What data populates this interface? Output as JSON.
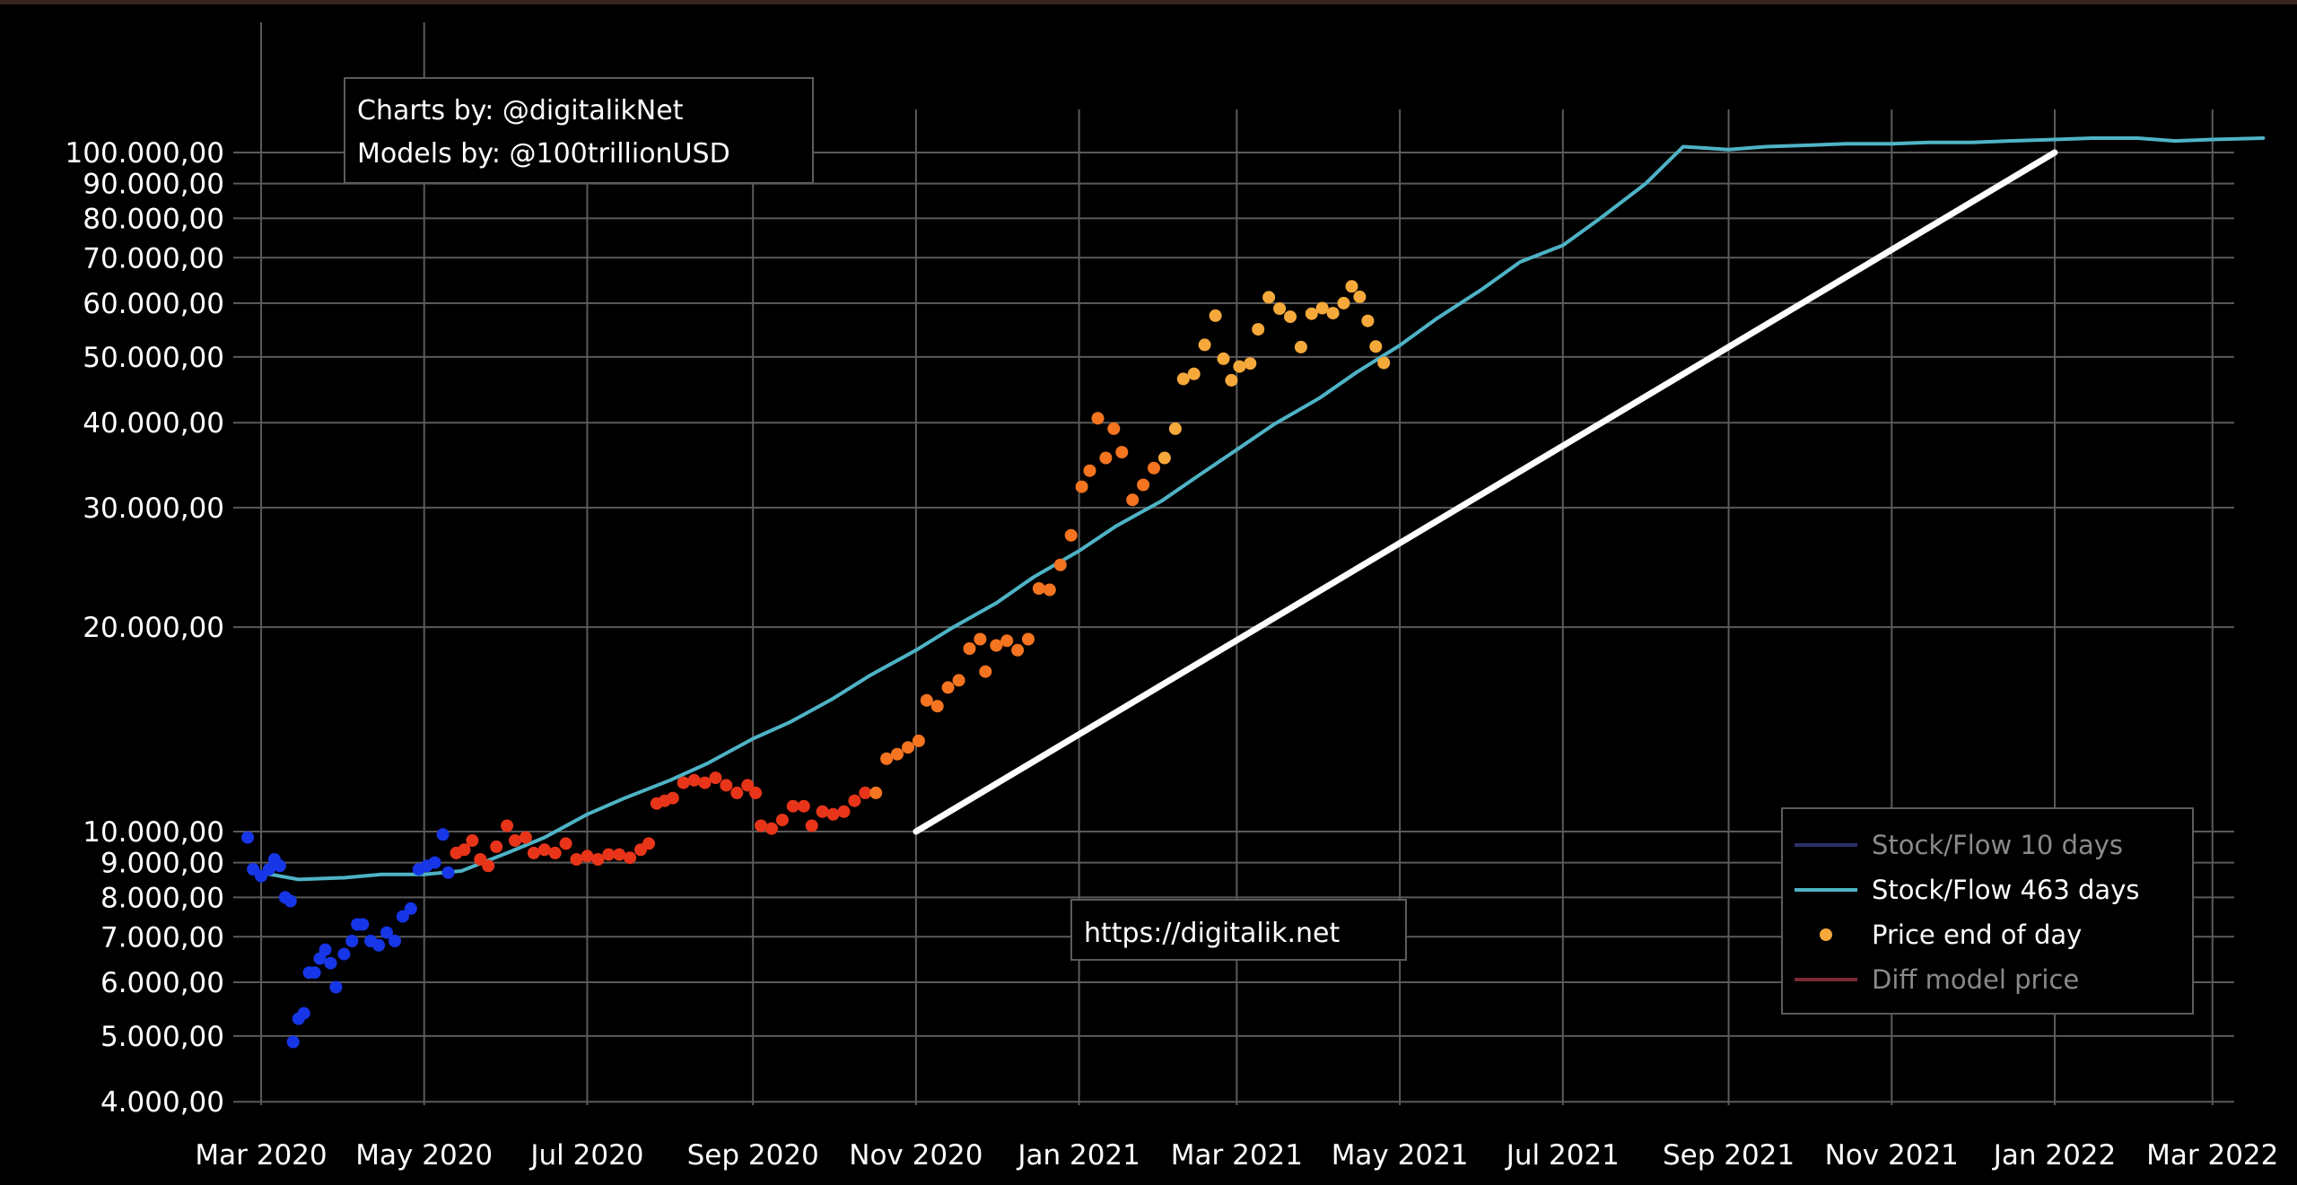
{
  "chart_data": {
    "type": "scatter",
    "x_axis": {
      "type": "date",
      "range": [
        "2020-02-24",
        "2022-03-20"
      ],
      "ticks": [
        {
          "date": "2020-03-01",
          "label": "Mar 2020"
        },
        {
          "date": "2020-05-01",
          "label": "May 2020"
        },
        {
          "date": "2020-07-01",
          "label": "Jul 2020"
        },
        {
          "date": "2020-09-01",
          "label": "Sep 2020"
        },
        {
          "date": "2020-11-01",
          "label": "Nov 2020"
        },
        {
          "date": "2021-01-01",
          "label": "Jan 2021"
        },
        {
          "date": "2021-03-01",
          "label": "Mar 2021"
        },
        {
          "date": "2021-05-01",
          "label": "May 2021"
        },
        {
          "date": "2021-07-01",
          "label": "Jul 2021"
        },
        {
          "date": "2021-09-01",
          "label": "Sep 2021"
        },
        {
          "date": "2021-11-01",
          "label": "Nov 2021"
        },
        {
          "date": "2022-01-01",
          "label": "Jan 2022"
        },
        {
          "date": "2022-03-01",
          "label": "Mar 2022"
        }
      ]
    },
    "y_axis": {
      "scale": "log",
      "range": [
        3700,
        128000
      ],
      "ticks": [
        {
          "value": 4000,
          "label": "4.000,00"
        },
        {
          "value": 5000,
          "label": "5.000,00"
        },
        {
          "value": 6000,
          "label": "6.000,00"
        },
        {
          "value": 7000,
          "label": "7.000,00"
        },
        {
          "value": 8000,
          "label": "8.000,00"
        },
        {
          "value": 9000,
          "label": "9.000,00"
        },
        {
          "value": 10000,
          "label": "10.000,00"
        },
        {
          "value": 20000,
          "label": "20.000,00"
        },
        {
          "value": 30000,
          "label": "30.000,00"
        },
        {
          "value": 40000,
          "label": "40.000,00"
        },
        {
          "value": 50000,
          "label": "50.000,00"
        },
        {
          "value": 60000,
          "label": "60.000,00"
        },
        {
          "value": 70000,
          "label": "70.000,00"
        },
        {
          "value": 80000,
          "label": "80.000,00"
        },
        {
          "value": 90000,
          "label": "90.000,00"
        },
        {
          "value": 100000,
          "label": "100.000,00"
        }
      ]
    },
    "grid": true,
    "legend_position": "bottom-right",
    "series": [
      {
        "name": "Stock/Flow 10 days",
        "kind": "line",
        "color": "#2b2f6b",
        "visible": false,
        "points": []
      },
      {
        "name": "Stock/Flow 463 days",
        "kind": "line",
        "color": "#4fb3c6",
        "points": [
          [
            "2020-03-01",
            8700
          ],
          [
            "2020-03-15",
            8500
          ],
          [
            "2020-04-01",
            8550
          ],
          [
            "2020-04-15",
            8650
          ],
          [
            "2020-05-01",
            8650
          ],
          [
            "2020-05-15",
            8750
          ],
          [
            "2020-06-01",
            9300
          ],
          [
            "2020-06-15",
            9800
          ],
          [
            "2020-07-01",
            10600
          ],
          [
            "2020-07-15",
            11200
          ],
          [
            "2020-08-01",
            11900
          ],
          [
            "2020-08-15",
            12600
          ],
          [
            "2020-09-01",
            13700
          ],
          [
            "2020-09-15",
            14500
          ],
          [
            "2020-10-01",
            15700
          ],
          [
            "2020-10-15",
            17000
          ],
          [
            "2020-11-01",
            18500
          ],
          [
            "2020-11-15",
            20000
          ],
          [
            "2020-12-01",
            21700
          ],
          [
            "2020-12-15",
            23700
          ],
          [
            "2021-01-01",
            25900
          ],
          [
            "2021-01-15",
            28200
          ],
          [
            "2021-02-01",
            30700
          ],
          [
            "2021-02-15",
            33500
          ],
          [
            "2021-03-01",
            36500
          ],
          [
            "2021-03-15",
            39800
          ],
          [
            "2021-04-01",
            43500
          ],
          [
            "2021-04-15",
            47500
          ],
          [
            "2021-05-01",
            52000
          ],
          [
            "2021-05-15",
            57000
          ],
          [
            "2021-06-01",
            63000
          ],
          [
            "2021-06-15",
            69000
          ],
          [
            "2021-07-01",
            73000
          ],
          [
            "2021-07-15",
            80000
          ],
          [
            "2021-08-01",
            90000
          ],
          [
            "2021-08-15",
            102000
          ],
          [
            "2021-09-01",
            101000
          ],
          [
            "2021-09-15",
            102000
          ],
          [
            "2021-10-01",
            102500
          ],
          [
            "2021-10-15",
            103000
          ],
          [
            "2021-11-01",
            103000
          ],
          [
            "2021-11-15",
            103500
          ],
          [
            "2021-12-01",
            103500
          ],
          [
            "2021-12-15",
            104000
          ],
          [
            "2022-01-01",
            104500
          ],
          [
            "2022-01-15",
            105000
          ],
          [
            "2022-02-01",
            105000
          ],
          [
            "2022-02-15",
            104000
          ],
          [
            "2022-03-01",
            104500
          ],
          [
            "2022-03-20",
            105000
          ]
        ]
      },
      {
        "name": "Price end of day",
        "kind": "scatter",
        "color": "#f6a93b",
        "color_ramp": [
          "#1736e8",
          "#e8351a",
          "#f47420",
          "#f6a93b"
        ],
        "points": [
          [
            "2020-02-25",
            9800
          ],
          [
            "2020-02-27",
            8800
          ],
          [
            "2020-03-01",
            8600
          ],
          [
            "2020-03-04",
            8800
          ],
          [
            "2020-03-06",
            9100
          ],
          [
            "2020-03-08",
            8900
          ],
          [
            "2020-03-10",
            8000
          ],
          [
            "2020-03-12",
            7900
          ],
          [
            "2020-03-13",
            4900
          ],
          [
            "2020-03-15",
            5300
          ],
          [
            "2020-03-17",
            5400
          ],
          [
            "2020-03-19",
            6200
          ],
          [
            "2020-03-21",
            6200
          ],
          [
            "2020-03-23",
            6500
          ],
          [
            "2020-03-25",
            6700
          ],
          [
            "2020-03-27",
            6400
          ],
          [
            "2020-03-29",
            5900
          ],
          [
            "2020-04-01",
            6600
          ],
          [
            "2020-04-04",
            6900
          ],
          [
            "2020-04-06",
            7300
          ],
          [
            "2020-04-08",
            7300
          ],
          [
            "2020-04-11",
            6900
          ],
          [
            "2020-04-14",
            6800
          ],
          [
            "2020-04-17",
            7100
          ],
          [
            "2020-04-20",
            6900
          ],
          [
            "2020-04-23",
            7500
          ],
          [
            "2020-04-26",
            7700
          ],
          [
            "2020-04-29",
            8800
          ],
          [
            "2020-05-02",
            8900
          ],
          [
            "2020-05-05",
            9000
          ],
          [
            "2020-05-08",
            9900
          ],
          [
            "2020-05-10",
            8700
          ],
          [
            "2020-05-13",
            9300
          ],
          [
            "2020-05-16",
            9400
          ],
          [
            "2020-05-19",
            9700
          ],
          [
            "2020-05-22",
            9100
          ],
          [
            "2020-05-25",
            8900
          ],
          [
            "2020-05-28",
            9500
          ],
          [
            "2020-06-01",
            10200
          ],
          [
            "2020-06-04",
            9700
          ],
          [
            "2020-06-08",
            9800
          ],
          [
            "2020-06-11",
            9300
          ],
          [
            "2020-06-15",
            9400
          ],
          [
            "2020-06-19",
            9300
          ],
          [
            "2020-06-23",
            9600
          ],
          [
            "2020-06-27",
            9100
          ],
          [
            "2020-07-01",
            9200
          ],
          [
            "2020-07-05",
            9100
          ],
          [
            "2020-07-09",
            9250
          ],
          [
            "2020-07-13",
            9250
          ],
          [
            "2020-07-17",
            9150
          ],
          [
            "2020-07-21",
            9400
          ],
          [
            "2020-07-24",
            9600
          ],
          [
            "2020-07-27",
            11000
          ],
          [
            "2020-07-30",
            11100
          ],
          [
            "2020-08-02",
            11200
          ],
          [
            "2020-08-06",
            11800
          ],
          [
            "2020-08-10",
            11900
          ],
          [
            "2020-08-14",
            11800
          ],
          [
            "2020-08-18",
            12000
          ],
          [
            "2020-08-22",
            11700
          ],
          [
            "2020-08-26",
            11400
          ],
          [
            "2020-08-30",
            11700
          ],
          [
            "2020-09-02",
            11400
          ],
          [
            "2020-09-04",
            10200
          ],
          [
            "2020-09-08",
            10100
          ],
          [
            "2020-09-12",
            10400
          ],
          [
            "2020-09-16",
            10900
          ],
          [
            "2020-09-20",
            10900
          ],
          [
            "2020-09-23",
            10200
          ],
          [
            "2020-09-27",
            10700
          ],
          [
            "2020-10-01",
            10600
          ],
          [
            "2020-10-05",
            10700
          ],
          [
            "2020-10-09",
            11100
          ],
          [
            "2020-10-13",
            11400
          ],
          [
            "2020-10-17",
            11400
          ],
          [
            "2020-10-21",
            12800
          ],
          [
            "2020-10-25",
            13000
          ],
          [
            "2020-10-29",
            13300
          ],
          [
            "2020-11-02",
            13600
          ],
          [
            "2020-11-05",
            15600
          ],
          [
            "2020-11-09",
            15300
          ],
          [
            "2020-11-13",
            16300
          ],
          [
            "2020-11-17",
            16700
          ],
          [
            "2020-11-21",
            18600
          ],
          [
            "2020-11-25",
            19200
          ],
          [
            "2020-11-27",
            17200
          ],
          [
            "2020-12-01",
            18800
          ],
          [
            "2020-12-05",
            19100
          ],
          [
            "2020-12-09",
            18500
          ],
          [
            "2020-12-13",
            19200
          ],
          [
            "2020-12-17",
            22800
          ],
          [
            "2020-12-21",
            22700
          ],
          [
            "2020-12-25",
            24700
          ],
          [
            "2020-12-29",
            27300
          ],
          [
            "2021-01-02",
            32200
          ],
          [
            "2021-01-05",
            34000
          ],
          [
            "2021-01-08",
            40600
          ],
          [
            "2021-01-11",
            35500
          ],
          [
            "2021-01-14",
            39200
          ],
          [
            "2021-01-17",
            36200
          ],
          [
            "2021-01-21",
            30800
          ],
          [
            "2021-01-25",
            32400
          ],
          [
            "2021-01-29",
            34300
          ],
          [
            "2021-02-02",
            35500
          ],
          [
            "2021-02-06",
            39200
          ],
          [
            "2021-02-09",
            46400
          ],
          [
            "2021-02-13",
            47200
          ],
          [
            "2021-02-17",
            52100
          ],
          [
            "2021-02-21",
            57500
          ],
          [
            "2021-02-24",
            49700
          ],
          [
            "2021-02-27",
            46200
          ],
          [
            "2021-03-02",
            48400
          ],
          [
            "2021-03-06",
            48900
          ],
          [
            "2021-03-09",
            54900
          ],
          [
            "2021-03-13",
            61200
          ],
          [
            "2021-03-17",
            58900
          ],
          [
            "2021-03-21",
            57300
          ],
          [
            "2021-03-25",
            51700
          ],
          [
            "2021-03-29",
            57900
          ],
          [
            "2021-04-02",
            59000
          ],
          [
            "2021-04-06",
            58000
          ],
          [
            "2021-04-10",
            60000
          ],
          [
            "2021-04-13",
            63500
          ],
          [
            "2021-04-16",
            61300
          ],
          [
            "2021-04-19",
            56500
          ],
          [
            "2021-04-22",
            51800
          ],
          [
            "2021-04-25",
            49000
          ]
        ]
      },
      {
        "name": "Diff model price",
        "kind": "line",
        "color": "#7a2a33",
        "visible": false,
        "points": []
      },
      {
        "name": "",
        "kind": "line",
        "color": "#ffffff",
        "points": [
          [
            "2020-11-01",
            10000
          ],
          [
            "2022-01-01",
            100000
          ]
        ]
      }
    ]
  },
  "legend": {
    "items": [
      {
        "label": "Stock/Flow 10 days",
        "color": "#2b2f6b",
        "active": false,
        "marker": "line"
      },
      {
        "label": "Stock/Flow 463 days",
        "color": "#4fb3c6",
        "active": true,
        "marker": "line"
      },
      {
        "label": "Price end of day",
        "color": "#f6a93b",
        "active": true,
        "marker": "dot"
      },
      {
        "label": "Diff model price",
        "color": "#7a2a33",
        "active": false,
        "marker": "line"
      }
    ]
  },
  "credits": {
    "line1": "Charts by: @digitalikNet",
    "line2": "Models by: @100trillionUSD"
  },
  "watermark": {
    "text": "https://digitalik.net",
    "color": "#b7f06a"
  }
}
